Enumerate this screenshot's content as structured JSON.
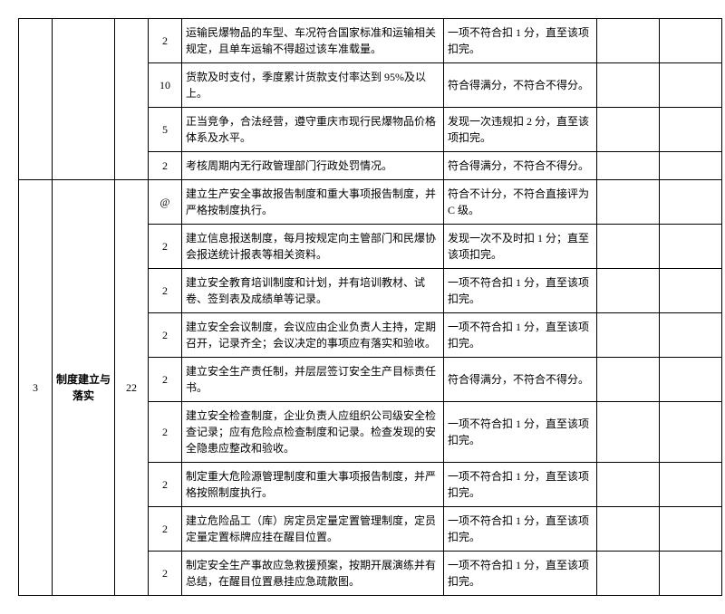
{
  "table": {
    "columns": {
      "idx_width": 28,
      "cat_width": 60,
      "total_width": 28,
      "pts_width": 28,
      "desc_width": 280,
      "rule_width": 160
    },
    "section1": {
      "rows": [
        {
          "pts": "2",
          "desc": "运输民爆物品的车型、车况符合国家标准和运输相关规定，且单车运输不得超过该车准载量。",
          "rule": "一项不符合扣 1 分，直至该项扣完。"
        },
        {
          "pts": "10",
          "desc": "货款及时支付，季度累计货款支付率达到 95%及以上。",
          "rule": "符合得满分，不符合不得分。"
        },
        {
          "pts": "5",
          "desc": "正当竞争，合法经营，遵守重庆市现行民爆物品价格体系及水平。",
          "rule": "发现一次违规扣 2 分，直至该项扣完。"
        },
        {
          "pts": "2",
          "desc": "考核周期内无行政管理部门行政处罚情况。",
          "rule": "符合得满分，不符合不得分。"
        }
      ]
    },
    "section2": {
      "idx": "3",
      "category": "制度建立与落实",
      "total": "22",
      "rows": [
        {
          "pts": "@",
          "desc": "建立生产安全事故报告制度和重大事项报告制度，并严格按制度执行。",
          "rule": "符合不计分，不符合直接评为 C 级。"
        },
        {
          "pts": "2",
          "desc": "建立信息报送制度，每月按规定向主管部门和民爆协会报送统计报表等相关资料。",
          "rule": "发现一次不及时扣 1 分；直至该项扣完。"
        },
        {
          "pts": "2",
          "desc": "建立安全教育培训制度和计划，并有培训教材、试卷、签到表及成绩单等记录。",
          "rule": "一项不符合扣 1 分，直至该项扣完。"
        },
        {
          "pts": "2",
          "desc": "建立安全会议制度，会议应由企业负责人主持，定期召开，记录齐全；会议决定的事项应有落实和验收。",
          "rule": "一项不符合扣 1 分，直至该项扣完。"
        },
        {
          "pts": "2",
          "desc": "建立安全生产责任制，并层层签订安全生产目标责任书。",
          "rule": "符合得满分，不符合不得分。"
        },
        {
          "pts": "2",
          "desc": "建立安全检查制度，企业负责人应组织公司级安全检查记录；应有危险点检查制度和记录。检查发现的安全隐患应整改和验收。",
          "rule": "一项不符合扣 1 分，直至该项扣完。"
        },
        {
          "pts": "2",
          "desc": "制定重大危险源管理制度和重大事项报告制度，并严格按照制度执行。",
          "rule": "一项不符合扣 1 分，直至该项扣完。"
        },
        {
          "pts": "2",
          "desc": "建立危险品工（库）房定员定量定置管理制度，定员定量定置标牌应挂在醒目位置。",
          "rule": "一项不符合扣 1 分，直至该项扣完。"
        },
        {
          "pts": "2",
          "desc": "制定安全生产事故应急救援预案，按期开展演练并有总结，在醒目位置悬挂应急疏散图。",
          "rule": "一项不符合扣 1 分，直至该项扣完。"
        }
      ]
    }
  }
}
